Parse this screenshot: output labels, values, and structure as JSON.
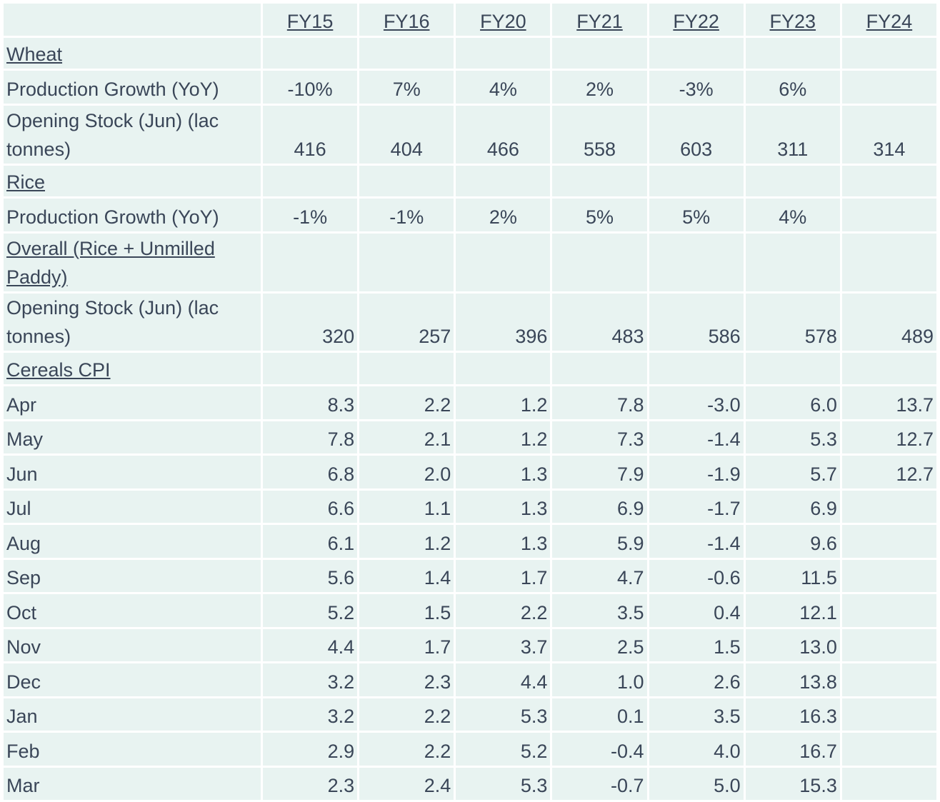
{
  "headers": [
    "",
    "FY15",
    "FY16",
    "FY20",
    "FY21",
    "FY22",
    "FY23",
    "FY24"
  ],
  "wheat": {
    "title": "Wheat",
    "production_growth": {
      "label": "Production Growth (YoY)",
      "values": [
        "-10%",
        "7%",
        "4%",
        "2%",
        "-3%",
        "6%",
        ""
      ]
    },
    "opening_stock": {
      "label": "Opening Stock (Jun) (lac tonnes)",
      "values": [
        "416",
        "404",
        "466",
        "558",
        "603",
        "311",
        "314"
      ]
    }
  },
  "rice": {
    "title": "Rice",
    "production_growth": {
      "label": "Production Growth (YoY)",
      "values": [
        "-1%",
        "-1%",
        "2%",
        "5%",
        "5%",
        "4%",
        ""
      ]
    }
  },
  "overall": {
    "title": "Overall (Rice + Unmilled Paddy)",
    "opening_stock": {
      "label": "Opening Stock (Jun) (lac tonnes)",
      "values": [
        "320",
        "257",
        "396",
        "483",
        "586",
        "578",
        "489"
      ]
    }
  },
  "cpi": {
    "title": "Cereals CPI",
    "rows": [
      {
        "month": "Apr",
        "values": [
          "8.3",
          "2.2",
          "1.2",
          "7.8",
          "-3.0",
          "6.0",
          "13.7"
        ]
      },
      {
        "month": "May",
        "values": [
          "7.8",
          "2.1",
          "1.2",
          "7.3",
          "-1.4",
          "5.3",
          "12.7"
        ]
      },
      {
        "month": "Jun",
        "values": [
          "6.8",
          "2.0",
          "1.3",
          "7.9",
          "-1.9",
          "5.7",
          "12.7"
        ]
      },
      {
        "month": "Jul",
        "values": [
          "6.6",
          "1.1",
          "1.3",
          "6.9",
          "-1.7",
          "6.9",
          ""
        ]
      },
      {
        "month": "Aug",
        "values": [
          "6.1",
          "1.2",
          "1.3",
          "5.9",
          "-1.4",
          "9.6",
          ""
        ]
      },
      {
        "month": "Sep",
        "values": [
          "5.6",
          "1.4",
          "1.7",
          "4.7",
          "-0.6",
          "11.5",
          ""
        ]
      },
      {
        "month": "Oct",
        "values": [
          "5.2",
          "1.5",
          "2.2",
          "3.5",
          "0.4",
          "12.1",
          ""
        ]
      },
      {
        "month": "Nov",
        "values": [
          "4.4",
          "1.7",
          "3.7",
          "2.5",
          "1.5",
          "13.0",
          ""
        ]
      },
      {
        "month": "Dec",
        "values": [
          "3.2",
          "2.3",
          "4.4",
          "1.0",
          "2.6",
          "13.8",
          ""
        ]
      },
      {
        "month": "Jan",
        "values": [
          "3.2",
          "2.2",
          "5.3",
          "0.1",
          "3.5",
          "16.3",
          ""
        ]
      },
      {
        "month": "Feb",
        "values": [
          "2.9",
          "2.2",
          "5.2",
          "-0.4",
          "4.0",
          "16.7",
          ""
        ]
      },
      {
        "month": "Mar",
        "values": [
          "2.3",
          "2.4",
          "5.3",
          "-0.7",
          "5.0",
          "15.3",
          ""
        ]
      }
    ]
  },
  "colors": {
    "cell_bg": "#e8f3f1",
    "text": "#3a4658",
    "gap": "#ffffff"
  }
}
